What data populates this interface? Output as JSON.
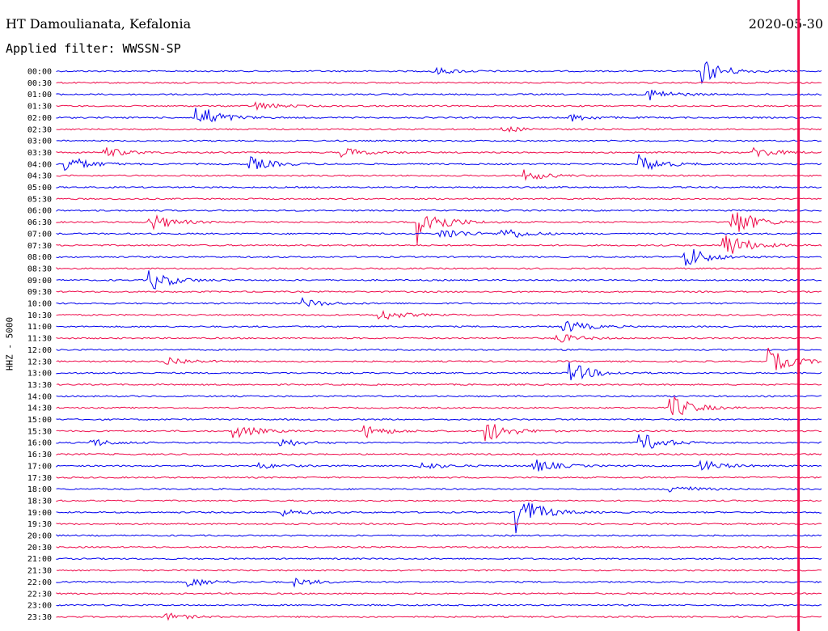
{
  "header": {
    "station": "HT Damoulianata, Kefalonia",
    "filter": "Applied filter: WWSSN-SP",
    "date": "2020-05-30"
  },
  "chart_data": {
    "type": "line",
    "title": "HT Damoulianata, Kefalonia",
    "subtitle": "Applied filter: WWSSN-SP",
    "date": "2020-05-30",
    "ylabel": "HHZ - 5000",
    "row_labels": [
      "00:00",
      "00:30",
      "01:00",
      "01:30",
      "02:00",
      "02:30",
      "03:00",
      "03:30",
      "04:00",
      "04:30",
      "05:00",
      "05:30",
      "06:00",
      "06:30",
      "07:00",
      "07:30",
      "08:00",
      "08:30",
      "09:00",
      "09:30",
      "10:00",
      "10:30",
      "11:00",
      "11:30",
      "12:00",
      "12:30",
      "13:00",
      "13:30",
      "14:00",
      "14:30",
      "15:00",
      "15:30",
      "16:00",
      "16:30",
      "17:00",
      "17:30",
      "18:00",
      "18:30",
      "19:00",
      "19:30",
      "20:00",
      "20:30",
      "21:00",
      "21:30",
      "22:00",
      "22:30",
      "23:00",
      "23:30"
    ],
    "row_interval_minutes": 30,
    "colors": [
      "#0000ee",
      "#ee0a4a"
    ],
    "current_time_line_color": "#ee0a4a",
    "current_time_fraction": 0.97,
    "events": [
      {
        "row": 0,
        "x": 0.49,
        "amp": 5
      },
      {
        "row": 0,
        "x": 0.84,
        "amp": 18
      },
      {
        "row": 2,
        "x": 0.77,
        "amp": 9
      },
      {
        "row": 3,
        "x": 0.26,
        "amp": 5
      },
      {
        "row": 4,
        "x": 0.18,
        "amp": 20
      },
      {
        "row": 4,
        "x": 0.67,
        "amp": 5
      },
      {
        "row": 5,
        "x": 0.58,
        "amp": 4
      },
      {
        "row": 7,
        "x": 0.06,
        "amp": 7
      },
      {
        "row": 7,
        "x": 0.37,
        "amp": 7
      },
      {
        "row": 7,
        "x": 0.91,
        "amp": 8
      },
      {
        "row": 8,
        "x": 0.01,
        "amp": 12
      },
      {
        "row": 8,
        "x": 0.25,
        "amp": 10
      },
      {
        "row": 8,
        "x": 0.76,
        "amp": 12
      },
      {
        "row": 9,
        "x": 0.61,
        "amp": 7
      },
      {
        "row": 13,
        "x": 0.12,
        "amp": 12
      },
      {
        "row": 13,
        "x": 0.47,
        "amp": 30
      },
      {
        "row": 13,
        "x": 0.88,
        "amp": 22
      },
      {
        "row": 14,
        "x": 0.5,
        "amp": 9
      },
      {
        "row": 14,
        "x": 0.58,
        "amp": 9
      },
      {
        "row": 15,
        "x": 0.87,
        "amp": 20
      },
      {
        "row": 16,
        "x": 0.82,
        "amp": 16
      },
      {
        "row": 18,
        "x": 0.12,
        "amp": 15
      },
      {
        "row": 20,
        "x": 0.32,
        "amp": 6
      },
      {
        "row": 21,
        "x": 0.42,
        "amp": 8
      },
      {
        "row": 22,
        "x": 0.66,
        "amp": 10
      },
      {
        "row": 23,
        "x": 0.65,
        "amp": 7
      },
      {
        "row": 25,
        "x": 0.14,
        "amp": 7
      },
      {
        "row": 25,
        "x": 0.93,
        "amp": 16
      },
      {
        "row": 26,
        "x": 0.67,
        "amp": 14
      },
      {
        "row": 29,
        "x": 0.8,
        "amp": 18
      },
      {
        "row": 31,
        "x": 0.23,
        "amp": 10
      },
      {
        "row": 31,
        "x": 0.4,
        "amp": 9
      },
      {
        "row": 31,
        "x": 0.56,
        "amp": 15
      },
      {
        "row": 32,
        "x": 0.04,
        "amp": 6
      },
      {
        "row": 32,
        "x": 0.29,
        "amp": 6
      },
      {
        "row": 32,
        "x": 0.76,
        "amp": 14
      },
      {
        "row": 34,
        "x": 0.26,
        "amp": 4
      },
      {
        "row": 34,
        "x": 0.47,
        "amp": 6
      },
      {
        "row": 34,
        "x": 0.62,
        "amp": 10
      },
      {
        "row": 34,
        "x": 0.84,
        "amp": 8
      },
      {
        "row": 36,
        "x": 0.8,
        "amp": 7
      },
      {
        "row": 38,
        "x": 0.6,
        "amp": 26
      },
      {
        "row": 38,
        "x": 0.29,
        "amp": 5
      },
      {
        "row": 44,
        "x": 0.17,
        "amp": 7
      },
      {
        "row": 44,
        "x": 0.31,
        "amp": 5
      },
      {
        "row": 47,
        "x": 0.14,
        "amp": 5
      }
    ]
  }
}
